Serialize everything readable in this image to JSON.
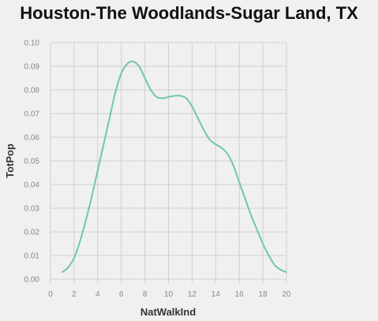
{
  "chart_data": {
    "type": "line",
    "title": "Houston-The Woodlands-Sugar Land, TX",
    "xlabel": "NatWalkInd",
    "ylabel": "TotPop",
    "xlim": [
      0,
      20
    ],
    "ylim": [
      0,
      0.1
    ],
    "x_ticks": [
      "0",
      "2",
      "4",
      "6",
      "8",
      "10",
      "12",
      "14",
      "16",
      "18",
      "20"
    ],
    "y_ticks": [
      "0.00",
      "0.01",
      "0.02",
      "0.03",
      "0.04",
      "0.05",
      "0.06",
      "0.07",
      "0.08",
      "0.09",
      "0.10"
    ],
    "grid": true,
    "series": [
      {
        "color": "#6fc8a8",
        "x": [
          1.0,
          1.5,
          2.0,
          2.5,
          3.0,
          3.5,
          4.0,
          4.5,
          5.0,
          5.5,
          6.0,
          6.5,
          7.0,
          7.5,
          8.0,
          8.5,
          9.0,
          9.5,
          10.0,
          10.5,
          11.0,
          11.5,
          12.0,
          12.5,
          13.0,
          13.5,
          14.0,
          14.5,
          15.0,
          15.5,
          16.0,
          16.5,
          17.0,
          17.5,
          18.0,
          18.5,
          19.0,
          19.5,
          20.0
        ],
        "values": [
          0.003,
          0.005,
          0.009,
          0.016,
          0.025,
          0.035,
          0.046,
          0.057,
          0.068,
          0.079,
          0.087,
          0.091,
          0.092,
          0.09,
          0.085,
          0.08,
          0.077,
          0.0765,
          0.077,
          0.0775,
          0.0775,
          0.0765,
          0.073,
          0.068,
          0.063,
          0.059,
          0.057,
          0.0555,
          0.053,
          0.048,
          0.041,
          0.034,
          0.027,
          0.021,
          0.015,
          0.01,
          0.006,
          0.004,
          0.003
        ]
      }
    ]
  }
}
